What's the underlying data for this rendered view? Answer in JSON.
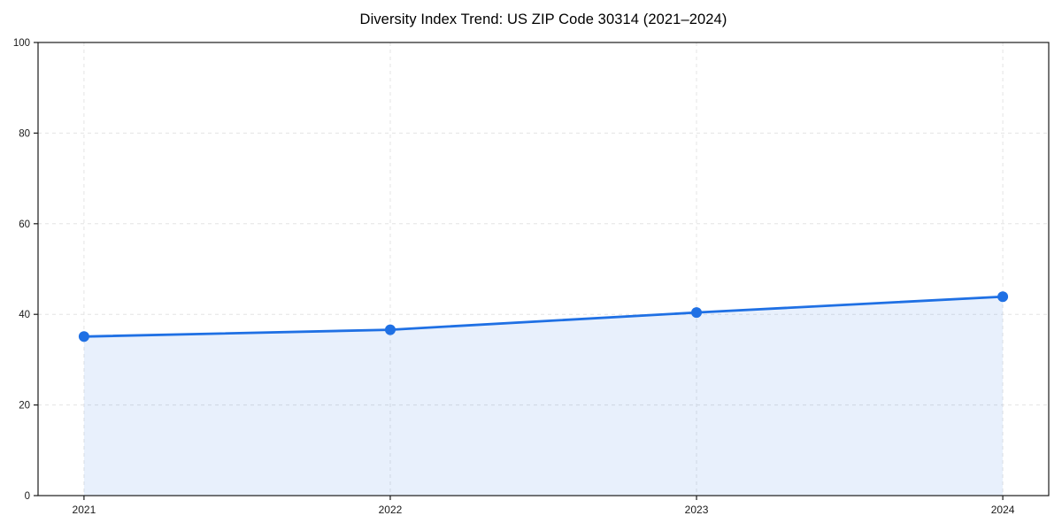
{
  "figure": {
    "background": "#ffffff"
  },
  "chart_data": {
    "type": "area",
    "title": "Diversity Index Trend: US ZIP Code 30314 (2021–2024)",
    "x": [
      2021,
      2022,
      2023,
      2024
    ],
    "values": [
      35.1,
      36.6,
      40.4,
      43.9
    ],
    "series_name": "Diversity Index",
    "xlabel": "",
    "ylabel": "",
    "xticks": [
      2021,
      2022,
      2023,
      2024
    ],
    "yticks": [
      0,
      20,
      40,
      60,
      80,
      100
    ],
    "xlim": [
      2020.85,
      2024.15
    ],
    "ylim": [
      0,
      100
    ],
    "grid": true,
    "grid_style": "dashed",
    "legend": "none",
    "marker": "circle",
    "colors": {
      "line": "#1f70e4",
      "marker": "#1f70e4",
      "fill": "rgba(31,112,228,0.10)",
      "grid": "#e4e4e4",
      "spine": "#1a1a1a",
      "tick_label": "#1a1a1a",
      "title": "#000000"
    }
  }
}
